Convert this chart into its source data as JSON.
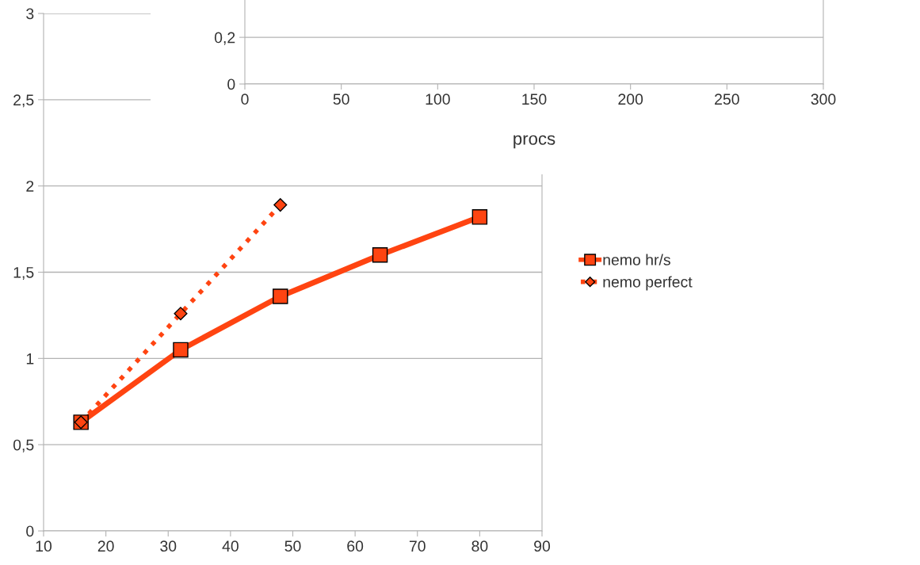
{
  "chart_data": [
    {
      "type": "line",
      "x": [
        16,
        32,
        48,
        64,
        80
      ],
      "series": [
        {
          "name": "nemo hr/s",
          "color": "#ff4411",
          "marker": "square",
          "line_style": "solid",
          "values": [
            0.63,
            1.05,
            1.36,
            1.6,
            1.82
          ]
        },
        {
          "name": "nemo perfect",
          "color": "#ff4411",
          "marker": "diamond",
          "line_style": "dotted",
          "values": [
            0.63,
            1.26,
            1.89,
            null,
            null
          ]
        }
      ],
      "xlim": [
        10,
        90
      ],
      "xticks": [
        10,
        20,
        30,
        40,
        50,
        60,
        70,
        80,
        90
      ],
      "ylim": [
        0,
        3
      ],
      "yticks": [
        0,
        {
          "value": 0.5,
          "label": "0,5"
        },
        1,
        {
          "value": 1.5,
          "label": "1,5"
        },
        2,
        {
          "value": 2.5,
          "label": "2,5"
        },
        3
      ],
      "grid": "y",
      "legend": "right"
    },
    {
      "type": "line",
      "xlabel": "procs",
      "xlim": [
        0,
        300
      ],
      "xticks": [
        0,
        50,
        100,
        150,
        200,
        250,
        300
      ],
      "ylim": [
        0,
        0.36
      ],
      "yticks": [
        0,
        {
          "value": 0.2,
          "label": "0,2"
        }
      ],
      "grid": "y"
    }
  ]
}
